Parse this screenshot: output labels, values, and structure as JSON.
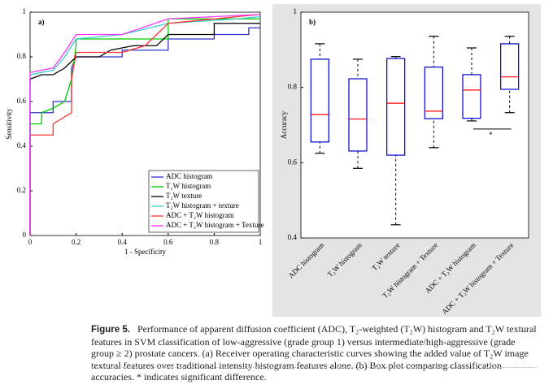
{
  "chart_data": [
    {
      "type": "line",
      "panel_label": "a)",
      "x_label": "1 - Specificity",
      "y_label": "Sensitivity",
      "xlim": [
        0,
        1
      ],
      "ylim": [
        0,
        1
      ],
      "xticks": [
        0,
        0.2,
        0.4,
        0.6,
        0.8,
        1
      ],
      "yticks": [
        0,
        0.2,
        0.4,
        0.6,
        0.8,
        1
      ],
      "legend": "lower right",
      "series": [
        {
          "name": "ADC histogram",
          "color": "#3333cc",
          "x": [
            0,
            0,
            0.1,
            0.1,
            0.18,
            0.18,
            0.2,
            0.4,
            0.4,
            0.6,
            0.6,
            0.8,
            0.8,
            0.95,
            0.95,
            1
          ],
          "values": [
            0,
            0.55,
            0.55,
            0.6,
            0.6,
            0.75,
            0.8,
            0.8,
            0.83,
            0.83,
            0.88,
            0.88,
            0.9,
            0.9,
            0.93,
            0.93
          ]
        },
        {
          "name": "T₂W histogram",
          "color": "#00cc00",
          "x": [
            0,
            0,
            0.05,
            0.05,
            0.1,
            0.15,
            0.18,
            0.2,
            0.2,
            0.6,
            0.6,
            1
          ],
          "values": [
            0,
            0.5,
            0.5,
            0.55,
            0.57,
            0.6,
            0.7,
            0.85,
            0.88,
            0.88,
            0.97,
            0.97
          ]
        },
        {
          "name": "T₂W texture",
          "color": "#000000",
          "x": [
            0,
            0,
            0.05,
            0.1,
            0.15,
            0.2,
            0.3,
            0.35,
            0.45,
            0.55,
            0.6,
            0.8,
            0.8,
            1
          ],
          "values": [
            0,
            0.7,
            0.72,
            0.72,
            0.75,
            0.8,
            0.8,
            0.83,
            0.85,
            0.85,
            0.9,
            0.9,
            0.95,
            0.95
          ]
        },
        {
          "name": "T₂W histogram + texture",
          "color": "#33cccc",
          "x": [
            0,
            0,
            0.1,
            0.15,
            0.2,
            0.4,
            0.6,
            0.9,
            1
          ],
          "values": [
            0,
            0.72,
            0.74,
            0.8,
            0.88,
            0.9,
            0.95,
            0.97,
            0.98
          ]
        },
        {
          "name": "ADC + T₂W histogram",
          "color": "#ff3333",
          "x": [
            0,
            0,
            0.1,
            0.1,
            0.18,
            0.18,
            0.2,
            0.4,
            0.5,
            0.6,
            0.8,
            1
          ],
          "values": [
            0,
            0.45,
            0.45,
            0.5,
            0.55,
            0.7,
            0.82,
            0.82,
            0.85,
            0.95,
            0.97,
            0.99
          ]
        },
        {
          "name": "ADC + T₂W histogram + Texture",
          "color": "#ff33ff",
          "x": [
            0,
            0,
            0.1,
            0.15,
            0.2,
            0.4,
            0.6,
            0.8,
            1
          ],
          "values": [
            0,
            0.73,
            0.75,
            0.82,
            0.9,
            0.9,
            0.97,
            0.98,
            0.99
          ]
        }
      ]
    },
    {
      "type": "box",
      "panel_label": "b)",
      "y_label": "Accuracy",
      "ylim": [
        0.4,
        1
      ],
      "yticks": [
        0.4,
        0.6,
        0.8,
        1
      ],
      "categories": [
        "ADC histogram",
        "T₂W histogram",
        "T₂W texture",
        "T₂W histogram + Texture",
        "ADC + T₂W histogram",
        "ADC + T₂W histogram + Texture"
      ],
      "box_color": "#0000cc",
      "median_color": "#ff0000",
      "background": "#e4e4e4",
      "whisker_low": [
        0.625,
        0.585,
        0.435,
        0.64,
        0.711,
        0.733
      ],
      "q1": [
        0.655,
        0.631,
        0.62,
        0.717,
        0.718,
        0.795
      ],
      "median": [
        0.728,
        0.716,
        0.758,
        0.737,
        0.793,
        0.828
      ],
      "q3": [
        0.875,
        0.823,
        0.877,
        0.854,
        0.834,
        0.916
      ],
      "whisker_high": [
        0.916,
        0.875,
        0.882,
        0.936,
        0.905,
        0.936
      ],
      "significance_label": "*"
    }
  ],
  "caption": {
    "label": "Figure 5.",
    "text": "Performance of apparent diffusion coefficient (ADC), T₂-weighted (T₂W) histogram and T₂W textural features in SVM classification of low-aggressive (grade group 1) versus intermediate/high-aggressive (grade group ≥ 2) prostate cancers. (a) Receiver operating characteristic curves showing the added value of T₂W image textural features over traditional intensity histogram features alone. (b) Box plot comparing classification accuracies. * indicates significant difference."
  }
}
